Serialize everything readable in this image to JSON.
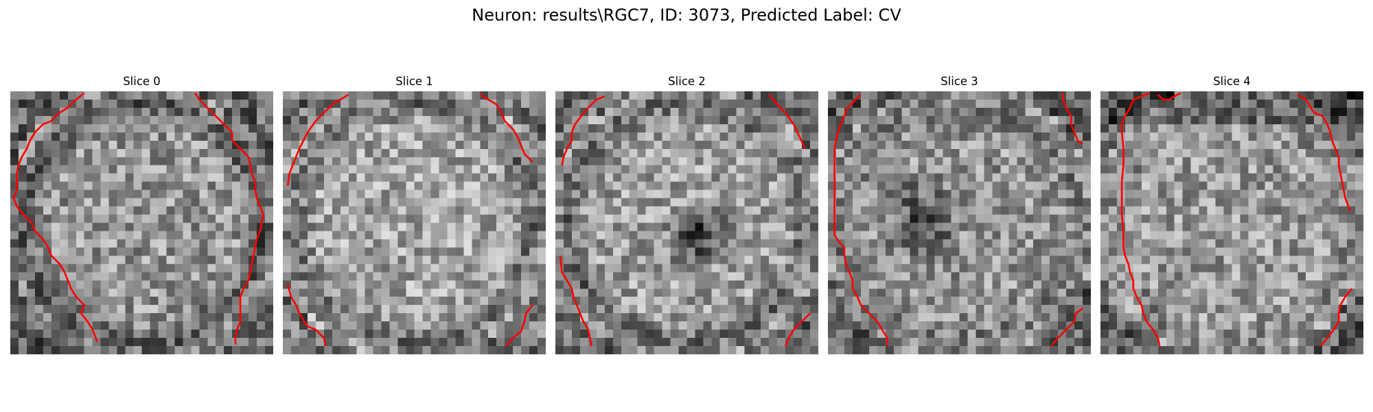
{
  "figure": {
    "title": "Neuron: results\\RGC7, ID: 3073, Predicted Label: CV",
    "contour_color": "#ff0000"
  },
  "panels": [
    {
      "title": "Slice 0"
    },
    {
      "title": "Slice 1"
    },
    {
      "title": "Slice 2"
    },
    {
      "title": "Slice 3"
    },
    {
      "title": "Slice 4"
    }
  ]
}
